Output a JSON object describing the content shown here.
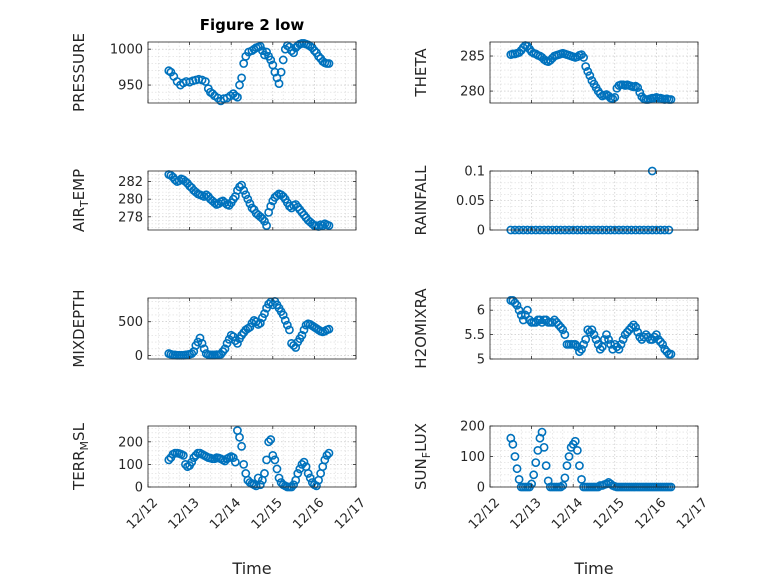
{
  "figure": {
    "title": "Figure 2 low",
    "xlabel": "Time"
  },
  "marker_color": "#0072BD",
  "chart_data": [
    {
      "type": "scatter",
      "name": "PRESSURE",
      "ylabel": "PRESSURE",
      "ylabel_sub": null,
      "xlim": [
        0,
        5
      ],
      "ylim": [
        925,
        1010
      ],
      "yticks": [
        950,
        1000
      ],
      "xticks": [],
      "xtick_labels": [],
      "x": [
        0.5,
        0.55,
        0.62,
        0.7,
        0.78,
        0.85,
        0.92,
        1.0,
        1.08,
        1.15,
        1.22,
        1.3,
        1.38,
        1.45,
        1.5,
        1.55,
        1.6,
        1.68,
        1.75,
        1.82,
        1.9,
        1.98,
        2.05,
        2.1,
        2.15,
        2.2,
        2.25,
        2.3,
        2.35,
        2.42,
        2.5,
        2.55,
        2.6,
        2.65,
        2.7,
        2.75,
        2.8,
        2.85,
        2.9,
        2.95,
        3.0,
        3.05,
        3.1,
        3.15,
        3.2,
        3.25,
        3.3,
        3.35,
        3.4,
        3.45,
        3.5,
        3.55,
        3.6,
        3.65,
        3.7,
        3.75,
        3.8,
        3.85,
        3.9,
        3.95,
        4.0,
        4.05,
        4.1,
        4.15,
        4.2,
        4.25,
        4.3,
        4.35
      ],
      "y": [
        970,
        968,
        962,
        955,
        950,
        953,
        955,
        954,
        956,
        957,
        958,
        957,
        955,
        945,
        940,
        938,
        935,
        932,
        928,
        931,
        932,
        935,
        938,
        935,
        933,
        950,
        960,
        980,
        990,
        996,
        998,
        1000,
        1002,
        1003,
        1004,
        998,
        992,
        996,
        990,
        985,
        978,
        968,
        960,
        952,
        968,
        985,
        1000,
        1005,
        1003,
        998,
        995,
        1002,
        1005,
        1007,
        1008,
        1008,
        1007,
        1006,
        1004,
        1002,
        998,
        995,
        990,
        987,
        983,
        981,
        980,
        980
      ]
    },
    {
      "type": "scatter",
      "name": "THETA",
      "ylabel": "THETA",
      "ylabel_sub": null,
      "xlim": [
        0,
        5
      ],
      "ylim": [
        278.3,
        287
      ],
      "yticks": [
        280,
        285
      ],
      "xticks": [],
      "xtick_labels": [],
      "x": [
        0.5,
        0.55,
        0.6,
        0.65,
        0.7,
        0.75,
        0.8,
        0.85,
        0.9,
        0.95,
        1.0,
        1.05,
        1.1,
        1.15,
        1.2,
        1.25,
        1.3,
        1.35,
        1.4,
        1.45,
        1.5,
        1.55,
        1.6,
        1.65,
        1.7,
        1.75,
        1.8,
        1.85,
        1.9,
        1.95,
        2.0,
        2.05,
        2.1,
        2.15,
        2.2,
        2.25,
        2.3,
        2.35,
        2.4,
        2.45,
        2.5,
        2.55,
        2.6,
        2.65,
        2.7,
        2.75,
        2.8,
        2.85,
        2.9,
        2.95,
        3.0,
        3.05,
        3.1,
        3.15,
        3.2,
        3.25,
        3.3,
        3.35,
        3.4,
        3.45,
        3.5,
        3.55,
        3.6,
        3.65,
        3.7,
        3.75,
        3.8,
        3.85,
        3.9,
        3.95,
        4.0,
        4.05,
        4.1,
        4.15,
        4.2,
        4.25,
        4.3,
        4.35
      ],
      "y": [
        285.2,
        285.3,
        285.3,
        285.4,
        285.5,
        285.8,
        286.2,
        286.5,
        286.4,
        286.0,
        285.6,
        285.4,
        285.3,
        285.1,
        285.0,
        284.8,
        284.5,
        284.3,
        284.2,
        284.4,
        284.7,
        285.0,
        285.1,
        285.2,
        285.3,
        285.4,
        285.3,
        285.2,
        285.1,
        285.0,
        284.9,
        284.8,
        284.9,
        285.1,
        285.2,
        284.8,
        283.5,
        282.8,
        282.2,
        281.5,
        281.0,
        280.5,
        280.0,
        279.6,
        279.3,
        279.4,
        279.5,
        279.3,
        279.0,
        278.9,
        279.1,
        280.4,
        280.8,
        280.9,
        280.9,
        280.8,
        280.9,
        280.8,
        280.7,
        280.6,
        280.7,
        280.5,
        279.8,
        279.2,
        278.9,
        278.8,
        278.8,
        278.9,
        279.0,
        279.0,
        279.1,
        279.0,
        279.0,
        278.9,
        278.8,
        278.9,
        278.8,
        278.8
      ]
    },
    {
      "type": "scatter",
      "name": "AIR_TEMP",
      "ylabel": "AIR_EMP",
      "ylabel_sub": "T",
      "xlim": [
        0,
        5
      ],
      "ylim": [
        276.5,
        283.2
      ],
      "yticks": [
        278,
        280,
        282
      ],
      "xticks": [],
      "xtick_labels": [],
      "x": [
        0.5,
        0.55,
        0.6,
        0.65,
        0.7,
        0.75,
        0.8,
        0.85,
        0.9,
        0.95,
        1.0,
        1.05,
        1.1,
        1.15,
        1.2,
        1.25,
        1.3,
        1.35,
        1.4,
        1.45,
        1.5,
        1.55,
        1.6,
        1.65,
        1.7,
        1.75,
        1.8,
        1.85,
        1.9,
        1.95,
        2.0,
        2.05,
        2.1,
        2.15,
        2.2,
        2.25,
        2.3,
        2.35,
        2.4,
        2.45,
        2.5,
        2.55,
        2.6,
        2.65,
        2.7,
        2.75,
        2.8,
        2.85,
        2.9,
        2.95,
        3.0,
        3.05,
        3.1,
        3.15,
        3.2,
        3.25,
        3.3,
        3.35,
        3.4,
        3.45,
        3.5,
        3.55,
        3.6,
        3.65,
        3.7,
        3.75,
        3.8,
        3.85,
        3.9,
        3.95,
        4.0,
        4.05,
        4.1,
        4.15,
        4.2,
        4.25,
        4.3,
        4.35
      ],
      "y": [
        282.8,
        282.7,
        282.5,
        282.2,
        282.0,
        282.1,
        282.3,
        282.2,
        282.0,
        281.8,
        281.5,
        281.3,
        281.0,
        280.8,
        280.6,
        280.5,
        280.4,
        280.3,
        280.5,
        280.3,
        280.0,
        279.8,
        279.6,
        279.4,
        279.5,
        279.7,
        279.8,
        279.6,
        279.4,
        279.3,
        279.6,
        280.0,
        280.3,
        281.0,
        281.4,
        281.6,
        281.0,
        280.5,
        280.0,
        279.5,
        279.0,
        278.8,
        278.4,
        278.2,
        278.0,
        277.8,
        277.5,
        277.0,
        278.5,
        279.2,
        279.8,
        280.2,
        280.4,
        280.6,
        280.5,
        280.3,
        280.0,
        279.6,
        279.2,
        279.0,
        279.3,
        279.4,
        279.1,
        278.8,
        278.5,
        278.2,
        277.9,
        277.6,
        277.4,
        277.2,
        277.0,
        277.0,
        276.9,
        277.1,
        277.0,
        277.2,
        277.1,
        277.0
      ]
    },
    {
      "type": "scatter",
      "name": "RAINFALL",
      "ylabel": "RAINFALL",
      "ylabel_sub": null,
      "xlim": [
        0,
        5
      ],
      "ylim": [
        0,
        0.1
      ],
      "yticks": [
        0,
        0.05,
        0.1
      ],
      "xticks": [],
      "xtick_labels": [],
      "x": [
        0.5,
        0.6,
        0.7,
        0.8,
        0.9,
        1.0,
        1.1,
        1.2,
        1.3,
        1.4,
        1.5,
        1.6,
        1.7,
        1.8,
        1.9,
        2.0,
        2.1,
        2.2,
        2.3,
        2.4,
        2.5,
        2.6,
        2.7,
        2.8,
        2.9,
        3.0,
        3.1,
        3.2,
        3.3,
        3.4,
        3.5,
        3.6,
        3.7,
        3.8,
        3.9,
        4.0,
        4.1,
        4.2,
        4.3,
        3.9
      ],
      "y": [
        0,
        0,
        0,
        0,
        0,
        0,
        0,
        0,
        0,
        0,
        0,
        0,
        0,
        0,
        0,
        0,
        0,
        0,
        0,
        0,
        0,
        0,
        0,
        0,
        0,
        0,
        0,
        0,
        0,
        0,
        0,
        0,
        0,
        0,
        0,
        0,
        0,
        0,
        0,
        0.1
      ]
    },
    {
      "type": "scatter",
      "name": "MIXDEPTH",
      "ylabel": "MIXDEPTH",
      "ylabel_sub": null,
      "xlim": [
        0,
        5
      ],
      "ylim": [
        -50,
        850
      ],
      "yticks": [
        0,
        500
      ],
      "xticks": [],
      "xtick_labels": [],
      "x": [
        0.5,
        0.55,
        0.6,
        0.65,
        0.7,
        0.75,
        0.8,
        0.85,
        0.9,
        0.95,
        1.0,
        1.05,
        1.1,
        1.15,
        1.2,
        1.25,
        1.3,
        1.35,
        1.4,
        1.45,
        1.5,
        1.55,
        1.6,
        1.65,
        1.7,
        1.75,
        1.8,
        1.85,
        1.9,
        1.95,
        2.0,
        2.05,
        2.1,
        2.15,
        2.2,
        2.25,
        2.3,
        2.35,
        2.4,
        2.45,
        2.5,
        2.55,
        2.6,
        2.65,
        2.7,
        2.75,
        2.8,
        2.85,
        2.9,
        2.95,
        3.0,
        3.05,
        3.1,
        3.15,
        3.2,
        3.25,
        3.3,
        3.35,
        3.4,
        3.45,
        3.5,
        3.55,
        3.6,
        3.65,
        3.7,
        3.75,
        3.8,
        3.85,
        3.9,
        3.95,
        4.0,
        4.05,
        4.1,
        4.15,
        4.2,
        4.25,
        4.3,
        4.35
      ],
      "y": [
        30,
        20,
        10,
        10,
        5,
        5,
        5,
        5,
        10,
        15,
        20,
        30,
        60,
        150,
        200,
        260,
        180,
        100,
        30,
        15,
        10,
        10,
        10,
        15,
        15,
        20,
        60,
        100,
        180,
        240,
        300,
        280,
        220,
        180,
        250,
        300,
        340,
        380,
        400,
        420,
        480,
        520,
        500,
        460,
        480,
        560,
        620,
        700,
        760,
        790,
        750,
        800,
        750,
        700,
        650,
        600,
        520,
        450,
        380,
        180,
        150,
        120,
        200,
        250,
        300,
        380,
        450,
        470,
        460,
        440,
        420,
        400,
        380,
        360,
        350,
        360,
        380,
        390
      ]
    },
    {
      "type": "scatter",
      "name": "H2OMIXRA",
      "ylabel": "H2OMIXRA",
      "ylabel_sub": null,
      "xlim": [
        0,
        5
      ],
      "ylim": [
        5,
        6.25
      ],
      "yticks": [
        5,
        5.5,
        6
      ],
      "xticks": [],
      "xtick_labels": [],
      "x": [
        0.5,
        0.55,
        0.6,
        0.65,
        0.7,
        0.75,
        0.8,
        0.85,
        0.9,
        0.95,
        1.0,
        1.05,
        1.1,
        1.15,
        1.2,
        1.25,
        1.3,
        1.35,
        1.4,
        1.45,
        1.5,
        1.55,
        1.6,
        1.65,
        1.7,
        1.75,
        1.8,
        1.85,
        1.9,
        1.95,
        2.0,
        2.05,
        2.1,
        2.15,
        2.2,
        2.25,
        2.3,
        2.35,
        2.4,
        2.45,
        2.5,
        2.55,
        2.6,
        2.65,
        2.7,
        2.75,
        2.8,
        2.85,
        2.9,
        2.95,
        3.0,
        3.05,
        3.1,
        3.15,
        3.2,
        3.25,
        3.3,
        3.35,
        3.4,
        3.45,
        3.5,
        3.55,
        3.6,
        3.65,
        3.7,
        3.75,
        3.8,
        3.85,
        3.9,
        3.95,
        4.0,
        4.05,
        4.1,
        4.15,
        4.2,
        4.25,
        4.3,
        4.35
      ],
      "y": [
        6.2,
        6.2,
        6.15,
        6.1,
        6.0,
        5.9,
        5.8,
        5.9,
        6.0,
        5.8,
        5.75,
        5.75,
        5.75,
        5.8,
        5.8,
        5.75,
        5.8,
        5.8,
        5.75,
        5.75,
        5.75,
        5.8,
        5.75,
        5.7,
        5.65,
        5.6,
        5.5,
        5.3,
        5.3,
        5.3,
        5.3,
        5.3,
        5.25,
        5.15,
        5.2,
        5.3,
        5.4,
        5.6,
        5.55,
        5.6,
        5.5,
        5.4,
        5.3,
        5.2,
        5.25,
        5.4,
        5.5,
        5.4,
        5.3,
        5.2,
        5.3,
        5.25,
        5.2,
        5.3,
        5.4,
        5.5,
        5.55,
        5.6,
        5.65,
        5.7,
        5.65,
        5.55,
        5.45,
        5.4,
        5.45,
        5.5,
        5.45,
        5.4,
        5.4,
        5.45,
        5.5,
        5.4,
        5.35,
        5.3,
        5.2,
        5.15,
        5.1,
        5.1
      ]
    },
    {
      "type": "scatter",
      "name": "TERR_MSL",
      "ylabel": "TERR_SL",
      "ylabel_sub": "M",
      "xlim": [
        0,
        5
      ],
      "ylim": [
        0,
        270
      ],
      "yticks": [
        0,
        100,
        200
      ],
      "xticks": [
        0,
        1,
        2,
        3,
        4,
        5
      ],
      "xtick_labels": [
        "12/12",
        "12/13",
        "12/14",
        "12/15",
        "12/16",
        "12/17"
      ],
      "x": [
        0.5,
        0.55,
        0.6,
        0.65,
        0.7,
        0.75,
        0.8,
        0.85,
        0.9,
        0.95,
        1.0,
        1.05,
        1.1,
        1.15,
        1.2,
        1.25,
        1.3,
        1.35,
        1.4,
        1.45,
        1.5,
        1.55,
        1.6,
        1.65,
        1.7,
        1.75,
        1.8,
        1.85,
        1.9,
        1.95,
        2.0,
        2.05,
        2.1,
        2.15,
        2.2,
        2.25,
        2.3,
        2.35,
        2.4,
        2.45,
        2.5,
        2.55,
        2.6,
        2.65,
        2.7,
        2.75,
        2.8,
        2.85,
        2.9,
        2.95,
        3.0,
        3.05,
        3.1,
        3.15,
        3.2,
        3.25,
        3.3,
        3.35,
        3.4,
        3.45,
        3.5,
        3.55,
        3.6,
        3.65,
        3.7,
        3.75,
        3.8,
        3.85,
        3.9,
        3.95,
        4.0,
        4.05,
        4.1,
        4.15,
        4.2,
        4.25,
        4.3,
        4.35
      ],
      "y": [
        120,
        130,
        145,
        150,
        150,
        148,
        145,
        140,
        100,
        90,
        95,
        110,
        130,
        140,
        150,
        150,
        145,
        140,
        135,
        130,
        128,
        125,
        125,
        130,
        128,
        125,
        120,
        115,
        125,
        130,
        135,
        130,
        110,
        250,
        220,
        180,
        100,
        60,
        30,
        20,
        15,
        10,
        5,
        40,
        10,
        30,
        60,
        120,
        200,
        210,
        140,
        120,
        80,
        40,
        20,
        10,
        5,
        0,
        0,
        0,
        10,
        30,
        60,
        80,
        100,
        110,
        90,
        60,
        40,
        20,
        10,
        5,
        30,
        60,
        90,
        120,
        140,
        150
      ]
    },
    {
      "type": "scatter",
      "name": "SUN_FLUX",
      "ylabel": "SUN_LUX",
      "ylabel_sub": "F",
      "xlim": [
        0,
        5
      ],
      "ylim": [
        0,
        200
      ],
      "yticks": [
        0,
        100,
        200
      ],
      "xticks": [
        0,
        1,
        2,
        3,
        4,
        5
      ],
      "xtick_labels": [
        "12/12",
        "12/13",
        "12/14",
        "12/15",
        "12/16",
        "12/17"
      ],
      "x": [
        0.5,
        0.55,
        0.6,
        0.65,
        0.7,
        0.75,
        0.8,
        0.85,
        0.9,
        0.95,
        1.0,
        1.05,
        1.1,
        1.15,
        1.2,
        1.25,
        1.3,
        1.35,
        1.4,
        1.45,
        1.5,
        1.55,
        1.6,
        1.65,
        1.7,
        1.75,
        1.8,
        1.85,
        1.9,
        1.95,
        2.0,
        2.05,
        2.1,
        2.15,
        2.2,
        2.25,
        2.3,
        2.35,
        2.4,
        2.45,
        2.5,
        2.55,
        2.6,
        2.65,
        2.7,
        2.75,
        2.8,
        2.85,
        2.9,
        2.95,
        3.0,
        3.05,
        3.1,
        3.15,
        3.2,
        3.25,
        3.3,
        3.35,
        3.4,
        3.45,
        3.5,
        3.55,
        3.6,
        3.65,
        3.7,
        3.75,
        3.8,
        3.85,
        3.9,
        3.95,
        4.0,
        4.05,
        4.1,
        4.15,
        4.2,
        4.25,
        4.3,
        4.35
      ],
      "y": [
        160,
        140,
        100,
        60,
        25,
        0,
        0,
        0,
        0,
        0,
        10,
        40,
        80,
        120,
        160,
        180,
        130,
        70,
        20,
        0,
        0,
        0,
        0,
        0,
        0,
        5,
        30,
        70,
        100,
        130,
        140,
        150,
        120,
        70,
        25,
        0,
        0,
        0,
        0,
        0,
        0,
        0,
        0,
        5,
        5,
        8,
        10,
        15,
        10,
        5,
        2,
        0,
        0,
        0,
        0,
        0,
        0,
        0,
        0,
        0,
        0,
        0,
        0,
        0,
        0,
        0,
        0,
        0,
        0,
        0,
        0,
        0,
        0,
        0,
        0,
        0,
        0,
        0
      ]
    }
  ]
}
